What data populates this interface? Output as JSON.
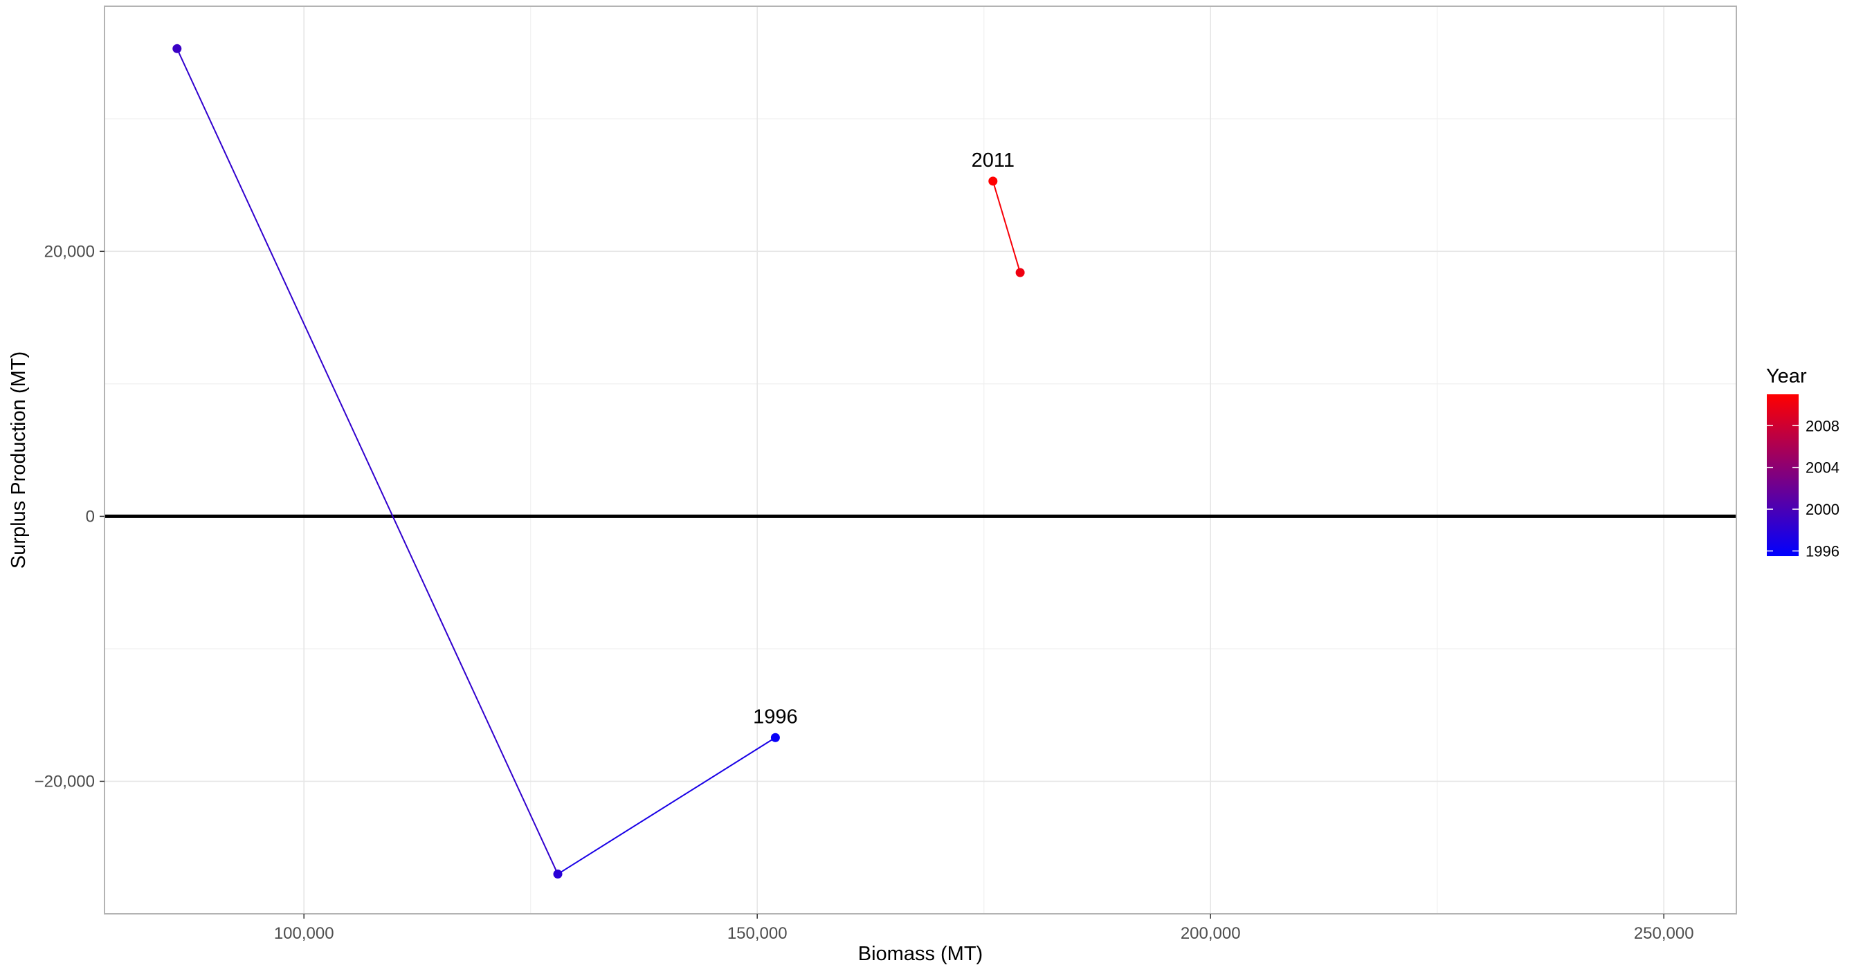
{
  "chart_data": {
    "type": "scatter",
    "xlabel": "Biomass (MT)",
    "ylabel": "Surplus Production (MT)",
    "xlim": [
      78000,
      258000
    ],
    "ylim": [
      -30000,
      38500
    ],
    "x_ticks": [
      100000,
      150000,
      200000,
      250000
    ],
    "x_tick_labels": [
      "100,000",
      "150,000",
      "200,000",
      "250,000"
    ],
    "y_ticks": [
      -20000,
      0,
      20000
    ],
    "y_tick_labels": [
      "−20,000",
      "0",
      "20,000"
    ],
    "grid": true,
    "reference_line_y": 0,
    "points": [
      {
        "year": 1996,
        "x": 152000,
        "y": -16700,
        "label": "1996"
      },
      {
        "year": 1998,
        "x": 128000,
        "y": -27000,
        "label": ""
      },
      {
        "year": 1999,
        "x": 86000,
        "y": 35300,
        "label": ""
      },
      {
        "year": 2010,
        "x": 179000,
        "y": 18400,
        "label": ""
      },
      {
        "year": 2011,
        "x": 176000,
        "y": 25300,
        "label": "2011"
      }
    ],
    "segments": [
      [
        0,
        1
      ],
      [
        1,
        2
      ],
      [
        3,
        4
      ]
    ],
    "legend": {
      "title": "Year",
      "position": "right",
      "colors": {
        "low": "#0000ff",
        "high": "#ff0000"
      },
      "min": 1995.5,
      "max": 2011,
      "breaks": [
        1996,
        2000,
        2004,
        2008
      ],
      "break_labels": [
        "1996",
        "2000",
        "2004",
        "2008"
      ]
    }
  }
}
